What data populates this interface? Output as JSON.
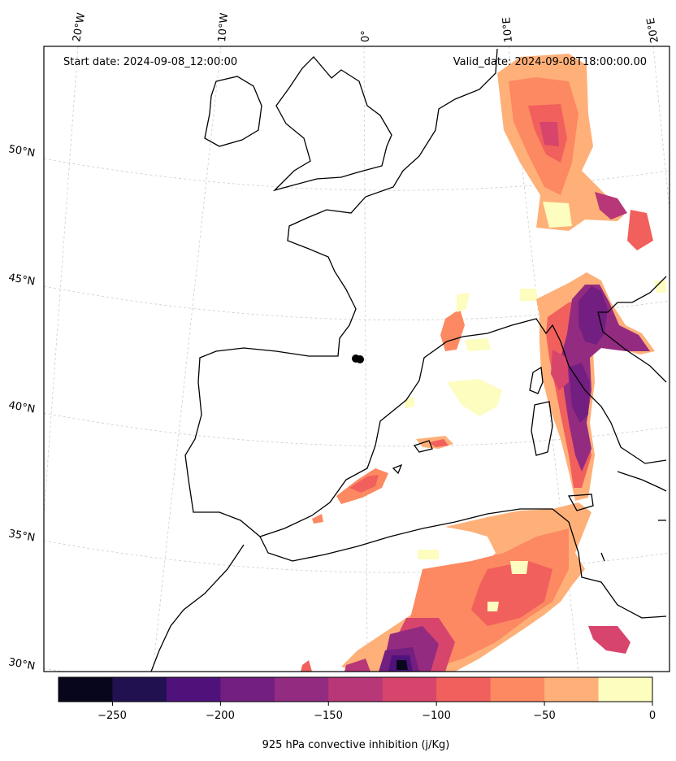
{
  "header": {
    "start_date": "Start date: 2024-09-08_12:00:00",
    "valid_date": "Valid_date: 2024-09-08T18:00:00.00"
  },
  "map": {
    "lon_labels": [
      "20°W",
      "10°W",
      "0°",
      "10°E",
      "20°E"
    ],
    "lat_labels": [
      "50°N",
      "45°N",
      "40°N",
      "35°N",
      "30°N"
    ],
    "gridlines": true,
    "coastline_color": "#000000",
    "marker": {
      "lon": -0.2,
      "lat": 41.6,
      "color": "#000000"
    }
  },
  "colorbar": {
    "label": "925 hPa convective inhibition (j/Kg)",
    "ticks": [
      "−250",
      "−200",
      "−150",
      "−100",
      "−50",
      "0"
    ],
    "levels": [
      -275,
      -250,
      -225,
      -200,
      -175,
      -150,
      -125,
      -100,
      -75,
      -50,
      -25,
      0
    ],
    "colors": [
      "#07061c",
      "#221150",
      "#4f127b",
      "#721f81",
      "#932b80",
      "#b73779",
      "#d8456c",
      "#f1605d",
      "#fc8961",
      "#feb078",
      "#fcfdbf"
    ]
  }
}
